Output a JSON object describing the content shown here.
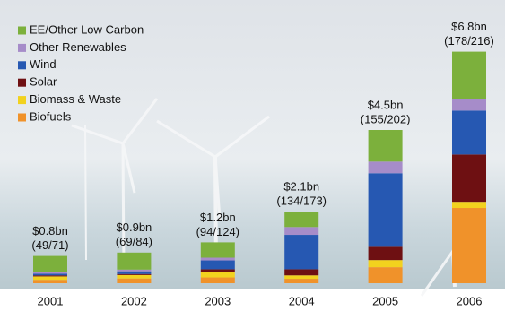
{
  "chart_data": {
    "type": "stacked_bar",
    "categories": [
      "2001",
      "2002",
      "2003",
      "2004",
      "2005",
      "2006"
    ],
    "series": [
      {
        "name": "Biofuels",
        "color": "#f0922a",
        "values": [
          0.1,
          0.14,
          0.17,
          0.13,
          0.47,
          2.21
        ]
      },
      {
        "name": "Biomass & Waste",
        "color": "#f2d21e",
        "values": [
          0.1,
          0.1,
          0.16,
          0.1,
          0.21,
          0.18
        ]
      },
      {
        "name": "Solar",
        "color": "#6e1012",
        "values": [
          0.03,
          0.03,
          0.08,
          0.18,
          0.39,
          1.39
        ]
      },
      {
        "name": "Wind",
        "color": "#2658b2",
        "values": [
          0.05,
          0.08,
          0.26,
          1.01,
          2.16,
          1.29
        ]
      },
      {
        "name": "Other Renewables",
        "color": "#a68cc9",
        "values": [
          0.05,
          0.05,
          0.08,
          0.23,
          0.34,
          0.34
        ]
      },
      {
        "name": "EE/Other Low Carbon",
        "color": "#7cb03c",
        "values": [
          0.47,
          0.5,
          0.45,
          0.45,
          0.93,
          1.39
        ]
      }
    ],
    "totals": {
      "values": [
        0.8,
        0.9,
        1.2,
        2.1,
        4.5,
        6.8
      ],
      "value_labels": [
        "$0.8bn",
        "$0.9bn",
        "$1.2bn",
        "$2.1bn",
        "$4.5bn",
        "$6.8bn"
      ]
    },
    "deal_labels": [
      "(49/71)",
      "(69/84)",
      "(94/124)",
      "(134/173)",
      "(155/202)",
      "(178/216)"
    ],
    "legend": "top-left"
  }
}
